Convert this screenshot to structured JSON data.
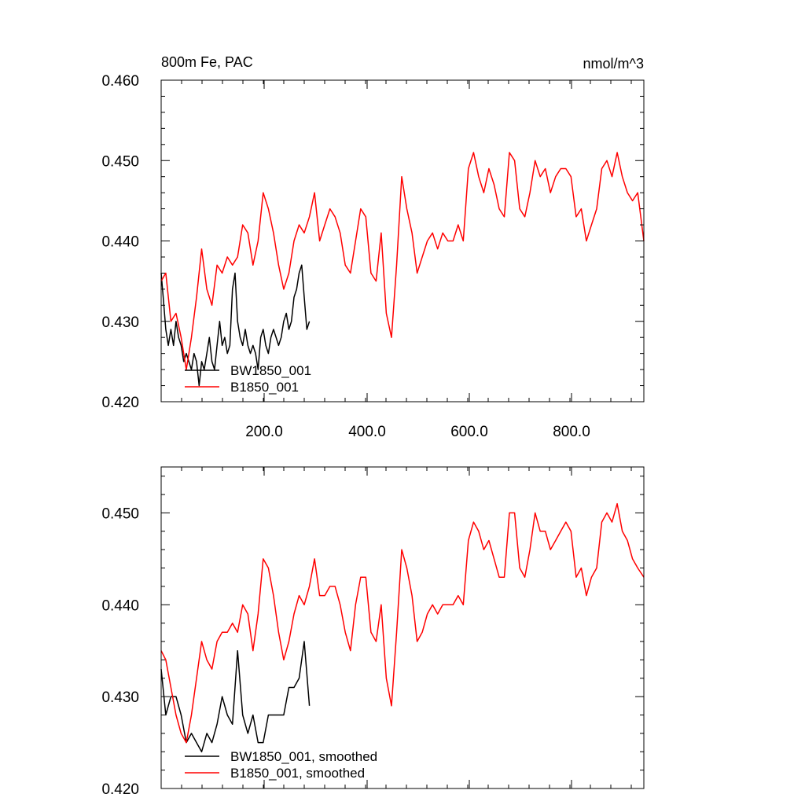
{
  "colors": {
    "BW1850_001": "#000000",
    "B1850_001": "#ff0000"
  },
  "chart_data": [
    {
      "type": "line",
      "title": "800m Fe, PAC",
      "units": "nmol/m^3",
      "xlim": [
        1,
        942
      ],
      "ylim": [
        0.42,
        0.46
      ],
      "x_ticks": [
        200,
        400,
        600,
        800
      ],
      "x_tick_labels": [
        "200.0",
        "400.0",
        "600.0",
        "800.0"
      ],
      "y_ticks": [
        0.42,
        0.43,
        0.44,
        0.45,
        0.46
      ],
      "y_tick_labels": [
        "0.420",
        "0.430",
        "0.440",
        "0.450",
        "0.460"
      ],
      "legend_position": "bottom-left",
      "series": [
        {
          "name": "BW1850_001",
          "color": "#000000",
          "x": [
            1,
            5,
            10,
            15,
            20,
            25,
            30,
            35,
            40,
            45,
            50,
            55,
            60,
            65,
            70,
            75,
            80,
            85,
            90,
            95,
            100,
            105,
            110,
            115,
            120,
            125,
            130,
            135,
            140,
            145,
            150,
            155,
            160,
            165,
            170,
            175,
            180,
            185,
            190,
            195,
            200,
            205,
            210,
            215,
            220,
            225,
            230,
            235,
            240,
            245,
            250,
            255,
            260,
            265,
            270,
            275,
            280,
            285,
            290
          ],
          "y": [
            0.436,
            0.433,
            0.429,
            0.427,
            0.429,
            0.427,
            0.43,
            0.428,
            0.427,
            0.425,
            0.426,
            0.425,
            0.424,
            0.426,
            0.425,
            0.422,
            0.425,
            0.424,
            0.426,
            0.428,
            0.425,
            0.424,
            0.427,
            0.43,
            0.427,
            0.428,
            0.426,
            0.427,
            0.434,
            0.436,
            0.43,
            0.428,
            0.427,
            0.429,
            0.427,
            0.426,
            0.427,
            0.426,
            0.424,
            0.428,
            0.429,
            0.427,
            0.426,
            0.428,
            0.429,
            0.428,
            0.427,
            0.428,
            0.43,
            0.431,
            0.429,
            0.43,
            0.433,
            0.434,
            0.436,
            0.437,
            0.433,
            0.429,
            0.43
          ]
        },
        {
          "name": "B1850_001",
          "color": "#ff0000",
          "x": [
            1,
            10,
            20,
            30,
            40,
            50,
            60,
            70,
            80,
            90,
            100,
            110,
            120,
            130,
            140,
            150,
            160,
            170,
            180,
            190,
            200,
            210,
            220,
            230,
            240,
            250,
            260,
            270,
            280,
            290,
            300,
            310,
            320,
            330,
            340,
            350,
            360,
            370,
            380,
            390,
            400,
            410,
            420,
            430,
            440,
            450,
            460,
            470,
            480,
            490,
            500,
            510,
            520,
            530,
            540,
            550,
            560,
            570,
            580,
            590,
            600,
            610,
            620,
            630,
            640,
            650,
            660,
            670,
            680,
            690,
            700,
            710,
            720,
            730,
            740,
            750,
            760,
            770,
            780,
            790,
            800,
            810,
            820,
            830,
            840,
            850,
            860,
            870,
            880,
            890,
            900,
            910,
            920,
            930,
            942
          ],
          "y": [
            0.435,
            0.436,
            0.43,
            0.431,
            0.428,
            0.424,
            0.428,
            0.433,
            0.439,
            0.434,
            0.432,
            0.437,
            0.436,
            0.438,
            0.437,
            0.438,
            0.442,
            0.441,
            0.437,
            0.44,
            0.446,
            0.444,
            0.441,
            0.437,
            0.434,
            0.436,
            0.44,
            0.442,
            0.441,
            0.443,
            0.446,
            0.44,
            0.442,
            0.444,
            0.443,
            0.441,
            0.437,
            0.436,
            0.44,
            0.444,
            0.443,
            0.436,
            0.435,
            0.441,
            0.431,
            0.428,
            0.437,
            0.448,
            0.444,
            0.441,
            0.436,
            0.438,
            0.44,
            0.441,
            0.439,
            0.441,
            0.44,
            0.44,
            0.442,
            0.44,
            0.449,
            0.451,
            0.448,
            0.446,
            0.449,
            0.447,
            0.444,
            0.443,
            0.451,
            0.45,
            0.444,
            0.443,
            0.446,
            0.45,
            0.448,
            0.449,
            0.446,
            0.448,
            0.449,
            0.449,
            0.448,
            0.443,
            0.444,
            0.44,
            0.442,
            0.444,
            0.449,
            0.45,
            0.448,
            0.451,
            0.448,
            0.446,
            0.445,
            0.446,
            0.44
          ]
        }
      ]
    },
    {
      "type": "line",
      "title": "",
      "xlim": [
        1,
        942
      ],
      "ylim": [
        0.42,
        0.455
      ],
      "y_ticks": [
        0.42,
        0.43,
        0.44,
        0.45
      ],
      "y_tick_labels": [
        "0.420",
        "0.430",
        "0.440",
        "0.450"
      ],
      "legend_position": "bottom-left",
      "series": [
        {
          "name": "BW1850_001, smoothed",
          "color": "#000000",
          "x": [
            1,
            10,
            20,
            30,
            40,
            50,
            60,
            70,
            80,
            90,
            100,
            110,
            120,
            130,
            140,
            150,
            160,
            170,
            180,
            190,
            200,
            210,
            220,
            230,
            240,
            250,
            260,
            270,
            280,
            290
          ],
          "y": [
            0.433,
            0.428,
            0.43,
            0.43,
            0.428,
            0.425,
            0.426,
            0.425,
            0.424,
            0.426,
            0.425,
            0.427,
            0.43,
            0.428,
            0.427,
            0.435,
            0.428,
            0.426,
            0.428,
            0.425,
            0.425,
            0.428,
            0.428,
            0.428,
            0.428,
            0.431,
            0.431,
            0.432,
            0.436,
            0.429
          ]
        },
        {
          "name": "B1850_001, smoothed",
          "color": "#ff0000",
          "x": [
            1,
            10,
            20,
            30,
            40,
            50,
            60,
            70,
            80,
            90,
            100,
            110,
            120,
            130,
            140,
            150,
            160,
            170,
            180,
            190,
            200,
            210,
            220,
            230,
            240,
            250,
            260,
            270,
            280,
            290,
            300,
            310,
            320,
            330,
            340,
            350,
            360,
            370,
            380,
            390,
            400,
            410,
            420,
            430,
            440,
            450,
            460,
            470,
            480,
            490,
            500,
            510,
            520,
            530,
            540,
            550,
            560,
            570,
            580,
            590,
            600,
            610,
            620,
            630,
            640,
            650,
            660,
            670,
            680,
            690,
            700,
            710,
            720,
            730,
            740,
            750,
            760,
            770,
            780,
            790,
            800,
            810,
            820,
            830,
            840,
            850,
            860,
            870,
            880,
            890,
            900,
            910,
            920,
            930,
            942
          ],
          "y": [
            0.435,
            0.434,
            0.431,
            0.428,
            0.426,
            0.425,
            0.428,
            0.432,
            0.436,
            0.434,
            0.433,
            0.436,
            0.437,
            0.437,
            0.438,
            0.437,
            0.44,
            0.439,
            0.435,
            0.439,
            0.445,
            0.444,
            0.441,
            0.437,
            0.434,
            0.436,
            0.439,
            0.441,
            0.44,
            0.442,
            0.445,
            0.441,
            0.441,
            0.442,
            0.442,
            0.44,
            0.437,
            0.435,
            0.44,
            0.443,
            0.443,
            0.437,
            0.436,
            0.44,
            0.432,
            0.429,
            0.437,
            0.446,
            0.444,
            0.441,
            0.436,
            0.437,
            0.439,
            0.44,
            0.439,
            0.44,
            0.44,
            0.44,
            0.441,
            0.44,
            0.447,
            0.449,
            0.448,
            0.446,
            0.447,
            0.445,
            0.443,
            0.443,
            0.45,
            0.45,
            0.444,
            0.443,
            0.446,
            0.45,
            0.448,
            0.448,
            0.446,
            0.447,
            0.448,
            0.449,
            0.448,
            0.443,
            0.444,
            0.441,
            0.443,
            0.444,
            0.449,
            0.45,
            0.449,
            0.451,
            0.448,
            0.447,
            0.445,
            0.444,
            0.443
          ]
        }
      ]
    }
  ]
}
